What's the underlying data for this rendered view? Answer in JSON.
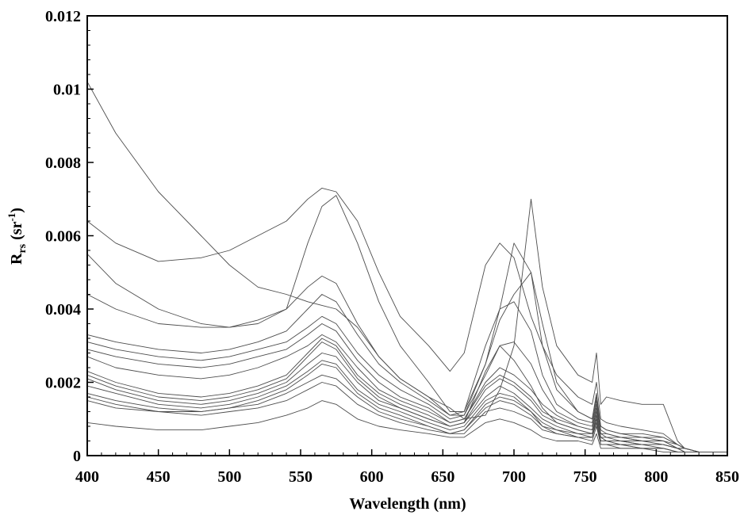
{
  "chart_data": {
    "type": "line",
    "xlabel": "Wavelength (nm)",
    "ylabel": {
      "base": "R",
      "subscript": "rs",
      "unit_prefix": " (sr",
      "unit_superscript": "-1",
      "unit_suffix": ")"
    },
    "xlim": [
      400,
      850
    ],
    "ylim": [
      0,
      0.012
    ],
    "x_ticks": [
      "400",
      "450",
      "500",
      "550",
      "600",
      "650",
      "700",
      "750",
      "800",
      "850"
    ],
    "y_ticks": [
      "0",
      "0.002",
      "0.004",
      "0.006",
      "0.008",
      "0.01",
      "0.012"
    ],
    "grid": false,
    "legend": "none",
    "line_color": "#4d4d4d",
    "series": [
      {
        "x": [
          400,
          420,
          450,
          480,
          500,
          520,
          540,
          555,
          565,
          575,
          590,
          605,
          620,
          640,
          655,
          665,
          680,
          690,
          700,
          712,
          720,
          730,
          745,
          755,
          758,
          761,
          765,
          775,
          790,
          805,
          815,
          820,
          830,
          850
        ],
        "y": [
          0.0102,
          0.0088,
          0.0072,
          0.006,
          0.0052,
          0.0046,
          0.0044,
          0.0042,
          0.0041,
          0.004,
          0.0035,
          0.0027,
          0.0021,
          0.0016,
          0.0013,
          0.001,
          0.0011,
          0.0018,
          0.003,
          0.007,
          0.0046,
          0.003,
          0.0022,
          0.002,
          0.0028,
          0.0014,
          0.0016,
          0.0015,
          0.0014,
          0.0014,
          0.0004,
          0.0002,
          0.0001,
          0.0001
        ]
      },
      {
        "x": [
          400,
          420,
          450,
          480,
          500,
          520,
          540,
          555,
          565,
          575,
          590,
          605,
          620,
          640,
          655,
          665,
          680,
          690,
          700,
          712,
          720,
          730,
          745,
          755,
          758,
          761,
          765,
          775,
          790,
          805,
          815,
          820,
          830,
          850
        ],
        "y": [
          0.0064,
          0.0058,
          0.0053,
          0.0054,
          0.0056,
          0.006,
          0.0064,
          0.007,
          0.0073,
          0.0072,
          0.0064,
          0.005,
          0.0038,
          0.003,
          0.0023,
          0.0028,
          0.0052,
          0.0058,
          0.0054,
          0.0038,
          0.003,
          0.0022,
          0.0016,
          0.0014,
          0.002,
          0.001,
          0.0009,
          0.0008,
          0.0007,
          0.0006,
          0.0003,
          0.0002,
          0.0001,
          0.0001
        ]
      },
      {
        "x": [
          400,
          420,
          450,
          480,
          500,
          520,
          540,
          555,
          565,
          575,
          590,
          605,
          620,
          640,
          655,
          665,
          680,
          690,
          700,
          712,
          720,
          730,
          745,
          755,
          758,
          761,
          765,
          775,
          790,
          805,
          815,
          820,
          830,
          850
        ],
        "y": [
          0.0055,
          0.0047,
          0.004,
          0.0036,
          0.0035,
          0.0036,
          0.004,
          0.0058,
          0.0068,
          0.0071,
          0.0058,
          0.0042,
          0.003,
          0.002,
          0.0012,
          0.0012,
          0.0025,
          0.004,
          0.0058,
          0.005,
          0.003,
          0.0018,
          0.0012,
          0.001,
          0.0017,
          0.0008,
          0.0007,
          0.0006,
          0.0006,
          0.0005,
          0.0003,
          0.0002,
          0.0001,
          0.0001
        ]
      },
      {
        "x": [
          400,
          420,
          450,
          480,
          500,
          520,
          540,
          555,
          565,
          575,
          590,
          605,
          620,
          640,
          655,
          665,
          680,
          690,
          700,
          712,
          720,
          730,
          745,
          755,
          758,
          761,
          765,
          775,
          790,
          805,
          815,
          820,
          830,
          850
        ],
        "y": [
          0.0044,
          0.004,
          0.0036,
          0.0035,
          0.0035,
          0.0037,
          0.004,
          0.0046,
          0.0049,
          0.0047,
          0.0036,
          0.0027,
          0.0021,
          0.0016,
          0.0011,
          0.0011,
          0.0025,
          0.0037,
          0.0044,
          0.005,
          0.0036,
          0.002,
          0.0012,
          0.001,
          0.0016,
          0.0008,
          0.0007,
          0.0006,
          0.0005,
          0.0005,
          0.0003,
          0.0002,
          0.0001,
          0.0001
        ]
      },
      {
        "x": [
          400,
          420,
          450,
          480,
          500,
          520,
          540,
          555,
          565,
          575,
          590,
          605,
          620,
          640,
          655,
          665,
          680,
          690,
          700,
          712,
          720,
          730,
          745,
          755,
          758,
          761,
          765,
          775,
          790,
          805,
          815,
          820,
          830,
          850
        ],
        "y": [
          0.0033,
          0.0031,
          0.0029,
          0.0028,
          0.0029,
          0.0031,
          0.0034,
          0.004,
          0.0044,
          0.0042,
          0.0033,
          0.0025,
          0.002,
          0.0015,
          0.0011,
          0.0012,
          0.003,
          0.004,
          0.0042,
          0.0034,
          0.0022,
          0.0014,
          0.001,
          0.0009,
          0.0015,
          0.0007,
          0.0006,
          0.0005,
          0.0005,
          0.0004,
          0.0003,
          0.0002,
          0.0001,
          0.0001
        ]
      },
      {
        "x": [
          400,
          420,
          450,
          480,
          500,
          520,
          540,
          555,
          565,
          575,
          590,
          605,
          620,
          640,
          655,
          665,
          680,
          690,
          700,
          712,
          720,
          730,
          745,
          755,
          758,
          761,
          765,
          775,
          790,
          805,
          815,
          820,
          830,
          850
        ],
        "y": [
          0.0031,
          0.0029,
          0.0027,
          0.0026,
          0.0027,
          0.0029,
          0.0031,
          0.0035,
          0.0038,
          0.0036,
          0.0028,
          0.0022,
          0.0018,
          0.0014,
          0.001,
          0.0011,
          0.0022,
          0.003,
          0.0031,
          0.0025,
          0.0018,
          0.0012,
          0.0009,
          0.0008,
          0.0014,
          0.0006,
          0.0006,
          0.0005,
          0.0004,
          0.0004,
          0.0002,
          0.0002,
          0.0001,
          0.0001
        ]
      },
      {
        "x": [
          400,
          420,
          450,
          480,
          500,
          520,
          540,
          555,
          565,
          575,
          590,
          605,
          620,
          640,
          655,
          665,
          680,
          690,
          700,
          712,
          720,
          730,
          745,
          755,
          758,
          761,
          765,
          775,
          790,
          805,
          815,
          820,
          830,
          850
        ],
        "y": [
          0.0029,
          0.0027,
          0.0025,
          0.0024,
          0.0025,
          0.0027,
          0.0029,
          0.0033,
          0.0036,
          0.0034,
          0.0026,
          0.002,
          0.0016,
          0.0013,
          0.0009,
          0.001,
          0.002,
          0.0024,
          0.0022,
          0.0018,
          0.0014,
          0.0011,
          0.0008,
          0.0007,
          0.0013,
          0.0006,
          0.0005,
          0.0005,
          0.0004,
          0.0004,
          0.0002,
          0.0002,
          0.0001,
          0.0001
        ]
      },
      {
        "x": [
          400,
          420,
          450,
          480,
          500,
          520,
          540,
          555,
          565,
          575,
          590,
          605,
          620,
          640,
          655,
          665,
          680,
          690,
          700,
          712,
          720,
          730,
          745,
          755,
          758,
          761,
          765,
          775,
          790,
          805,
          815,
          820,
          830,
          850
        ],
        "y": [
          0.0027,
          0.0024,
          0.0022,
          0.0021,
          0.0022,
          0.0024,
          0.0027,
          0.003,
          0.0033,
          0.0031,
          0.0024,
          0.0018,
          0.0015,
          0.0012,
          0.0009,
          0.001,
          0.0019,
          0.0022,
          0.002,
          0.0016,
          0.0012,
          0.001,
          0.0008,
          0.0007,
          0.0012,
          0.0005,
          0.0005,
          0.0004,
          0.0004,
          0.0003,
          0.0002,
          0.0001,
          0.0001,
          0.0001
        ]
      },
      {
        "x": [
          400,
          420,
          450,
          480,
          500,
          520,
          540,
          555,
          565,
          575,
          590,
          605,
          620,
          640,
          655,
          665,
          680,
          690,
          700,
          712,
          720,
          730,
          745,
          755,
          758,
          761,
          765,
          775,
          790,
          805,
          815,
          820,
          830,
          850
        ],
        "y": [
          0.0023,
          0.002,
          0.0017,
          0.0016,
          0.0017,
          0.0019,
          0.0022,
          0.0028,
          0.0032,
          0.003,
          0.0022,
          0.0017,
          0.0014,
          0.0011,
          0.0008,
          0.0009,
          0.0018,
          0.0021,
          0.0019,
          0.0015,
          0.0011,
          0.0009,
          0.0007,
          0.0006,
          0.0011,
          0.0005,
          0.0004,
          0.0004,
          0.0003,
          0.0003,
          0.0002,
          0.0001,
          0.0001,
          0.0001
        ]
      },
      {
        "x": [
          400,
          420,
          450,
          480,
          500,
          520,
          540,
          555,
          565,
          575,
          590,
          605,
          620,
          640,
          655,
          665,
          680,
          690,
          700,
          712,
          720,
          730,
          745,
          755,
          758,
          761,
          765,
          775,
          790,
          805,
          815,
          820,
          830,
          850
        ],
        "y": [
          0.0021,
          0.0018,
          0.0015,
          0.0014,
          0.0015,
          0.0017,
          0.002,
          0.0025,
          0.0028,
          0.0027,
          0.002,
          0.0015,
          0.0013,
          0.001,
          0.0008,
          0.0009,
          0.0016,
          0.0019,
          0.0017,
          0.0013,
          0.001,
          0.0008,
          0.0006,
          0.0006,
          0.001,
          0.0004,
          0.0004,
          0.0003,
          0.0003,
          0.0003,
          0.0002,
          0.0001,
          0.0001,
          0.0001
        ]
      },
      {
        "x": [
          400,
          420,
          450,
          480,
          500,
          520,
          540,
          555,
          565,
          575,
          590,
          605,
          620,
          640,
          655,
          665,
          680,
          690,
          700,
          712,
          720,
          730,
          745,
          755,
          758,
          761,
          765,
          775,
          790,
          805,
          815,
          820,
          830,
          850
        ],
        "y": [
          0.0019,
          0.0017,
          0.0014,
          0.0013,
          0.0014,
          0.0016,
          0.0019,
          0.0023,
          0.0026,
          0.0025,
          0.0018,
          0.0014,
          0.0012,
          0.0009,
          0.0007,
          0.0008,
          0.0015,
          0.0017,
          0.0016,
          0.0012,
          0.0009,
          0.0007,
          0.0006,
          0.0005,
          0.001,
          0.0004,
          0.0004,
          0.0003,
          0.0003,
          0.0002,
          0.0001,
          0.0001,
          0.0001,
          0.0001
        ]
      },
      {
        "x": [
          400,
          420,
          450,
          480,
          500,
          520,
          540,
          555,
          565,
          575,
          590,
          605,
          620,
          640,
          655,
          665,
          680,
          690,
          700,
          712,
          720,
          730,
          745,
          755,
          758,
          761,
          765,
          775,
          790,
          805,
          815,
          820,
          830,
          850
        ],
        "y": [
          0.0017,
          0.0015,
          0.0013,
          0.0012,
          0.0013,
          0.0014,
          0.0017,
          0.002,
          0.0022,
          0.0021,
          0.0016,
          0.0012,
          0.001,
          0.0008,
          0.0006,
          0.0007,
          0.0013,
          0.0015,
          0.0014,
          0.0011,
          0.0008,
          0.0006,
          0.0005,
          0.0005,
          0.0009,
          0.0003,
          0.0003,
          0.0003,
          0.0002,
          0.0002,
          0.0001,
          0.0001,
          0.0001,
          0.0001
        ]
      },
      {
        "x": [
          400,
          420,
          450,
          480,
          500,
          520,
          540,
          555,
          565,
          575,
          590,
          605,
          620,
          640,
          655,
          665,
          680,
          690,
          700,
          712,
          720,
          730,
          745,
          755,
          758,
          761,
          765,
          775,
          790,
          805,
          815,
          820,
          830,
          850
        ],
        "y": [
          0.0015,
          0.0013,
          0.0012,
          0.0011,
          0.0012,
          0.0013,
          0.0015,
          0.0018,
          0.002,
          0.0019,
          0.0014,
          0.0011,
          0.0009,
          0.0007,
          0.0006,
          0.0006,
          0.0012,
          0.0013,
          0.0012,
          0.001,
          0.0007,
          0.0006,
          0.0005,
          0.0004,
          0.0008,
          0.0003,
          0.0003,
          0.0002,
          0.0002,
          0.0002,
          0.0001,
          0.0001,
          0.0001,
          0.0001
        ]
      },
      {
        "x": [
          400,
          420,
          450,
          480,
          500,
          520,
          540,
          555,
          565,
          575,
          590,
          605,
          620,
          640,
          655,
          665,
          680,
          690,
          700,
          712,
          720,
          730,
          745,
          755,
          758,
          761,
          765,
          775,
          790,
          805,
          815,
          820,
          830,
          850
        ],
        "y": [
          0.0009,
          0.0008,
          0.0007,
          0.0007,
          0.0008,
          0.0009,
          0.0011,
          0.0013,
          0.0015,
          0.0014,
          0.001,
          0.0008,
          0.0007,
          0.0006,
          0.0005,
          0.0005,
          0.0009,
          0.001,
          0.0009,
          0.0007,
          0.0005,
          0.0004,
          0.0004,
          0.0003,
          0.0006,
          0.0002,
          0.0002,
          0.0002,
          0.0002,
          0.0001,
          0.0001,
          0.0001,
          0.0001,
          0.0001
        ]
      },
      {
        "x": [
          400,
          420,
          450,
          480,
          500,
          520,
          540,
          555,
          565,
          575,
          590,
          605,
          620,
          640,
          655,
          665,
          680,
          690,
          700,
          712,
          720,
          730,
          745,
          755,
          758,
          761,
          765,
          775,
          790,
          805,
          815,
          820,
          830,
          850
        ],
        "y": [
          0.0022,
          0.0019,
          0.0016,
          0.0015,
          0.0016,
          0.0018,
          0.0021,
          0.0027,
          0.0031,
          0.0029,
          0.0021,
          0.0016,
          0.0013,
          0.001,
          0.0008,
          0.0009,
          0.0023,
          0.003,
          0.0026,
          0.0019,
          0.0013,
          0.0009,
          0.0007,
          0.0006,
          0.0011,
          0.0005,
          0.0004,
          0.0004,
          0.0003,
          0.0003,
          0.0002,
          0.0001,
          0.0001,
          0.0001
        ]
      },
      {
        "x": [
          400,
          420,
          450,
          480,
          500,
          520,
          540,
          555,
          565,
          575,
          590,
          605,
          620,
          640,
          655,
          665,
          680,
          690,
          700,
          712,
          720,
          730,
          745,
          755,
          758,
          761,
          765,
          775,
          790,
          805,
          815,
          820,
          830,
          850
        ],
        "y": [
          0.0016,
          0.0014,
          0.0012,
          0.0012,
          0.0013,
          0.0015,
          0.0018,
          0.0022,
          0.0025,
          0.0024,
          0.0017,
          0.0013,
          0.0011,
          0.0008,
          0.0006,
          0.0007,
          0.0014,
          0.0016,
          0.0015,
          0.0012,
          0.0008,
          0.0007,
          0.0005,
          0.0005,
          0.0009,
          0.0003,
          0.0003,
          0.0003,
          0.0002,
          0.0002,
          0.0001,
          0.0001,
          0.0001,
          0.0001
        ]
      }
    ]
  }
}
